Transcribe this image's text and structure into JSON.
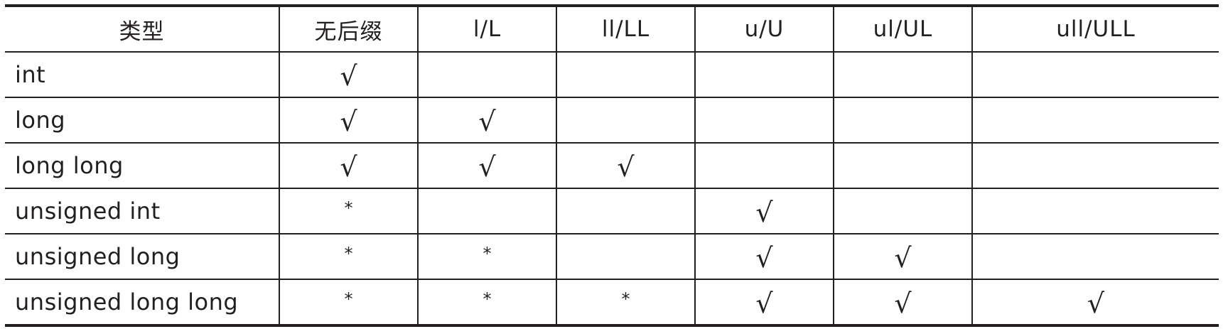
{
  "table": {
    "headers": [
      "类型",
      "无后缀",
      "l/L",
      "ll/LL",
      "u/U",
      "ul/UL",
      "ull/ULL"
    ],
    "rows": [
      {
        "type": "int",
        "marks": [
          "√",
          "",
          "",
          "",
          "",
          ""
        ]
      },
      {
        "type": "long",
        "marks": [
          "√",
          "√",
          "",
          "",
          "",
          ""
        ]
      },
      {
        "type": "long long",
        "marks": [
          "√",
          "√",
          "√",
          "",
          "",
          ""
        ]
      },
      {
        "type": "unsigned int",
        "marks": [
          "*",
          "",
          "",
          "√",
          "",
          ""
        ]
      },
      {
        "type": "unsigned long",
        "marks": [
          "*",
          "*",
          "",
          "√",
          "√",
          ""
        ]
      },
      {
        "type": "unsigned long long",
        "marks": [
          "*",
          "*",
          "*",
          "√",
          "√",
          "√"
        ]
      }
    ]
  },
  "symbols": {
    "check": "√",
    "star": "*"
  },
  "colors": {
    "text": "#231f20",
    "rule": "#231f20",
    "background": "#ffffff"
  }
}
